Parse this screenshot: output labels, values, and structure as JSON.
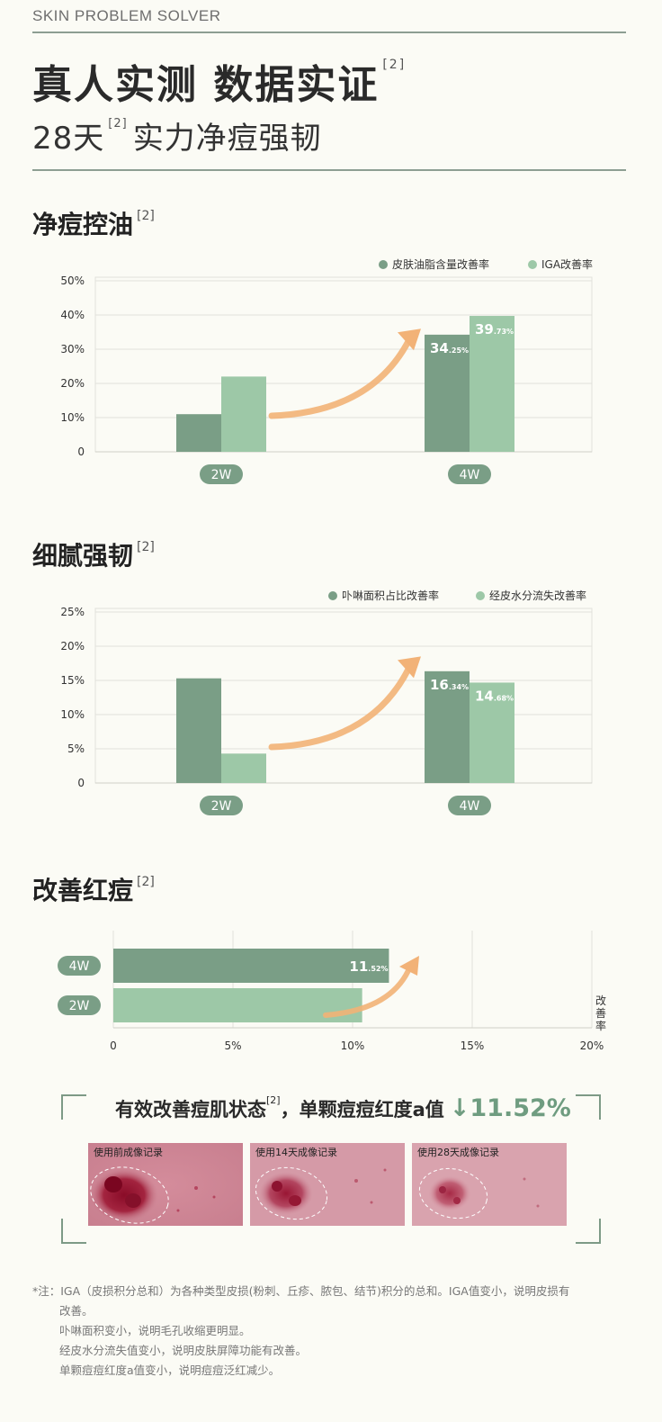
{
  "brand": "SKIN PROBLEM SOLVER",
  "headline": {
    "text": "真人实测 数据实证",
    "ref": "[2]"
  },
  "subline": {
    "prefix": "28天",
    "ref": "[2]",
    "suffix": "实力净痘强韧"
  },
  "colors": {
    "dark_green": "#7a9e86",
    "light_green": "#9dc8a7",
    "arrow": "#f2b277",
    "pill": "#7a9e86"
  },
  "section1": {
    "title": "净痘控油",
    "ref": "[2]"
  },
  "section2": {
    "title": "细腻强韧",
    "ref": "[2]"
  },
  "section3": {
    "title": "改善红痘",
    "ref": "[2]"
  },
  "chart_data": [
    {
      "type": "bar",
      "categories": [
        "2W",
        "4W"
      ],
      "series": [
        {
          "name": "皮肤油脂含量改善率",
          "values": [
            11,
            34.25
          ],
          "labels": [
            "",
            "34.25%"
          ]
        },
        {
          "name": "IGA改善率",
          "values": [
            22,
            39.73
          ],
          "labels": [
            "",
            "39.73%"
          ]
        }
      ],
      "yticks": [
        "0",
        "10%",
        "20%",
        "30%",
        "40%",
        "50%"
      ],
      "ylim": [
        0,
        50
      ],
      "legend": "top-right"
    },
    {
      "type": "bar",
      "categories": [
        "2W",
        "4W"
      ],
      "series": [
        {
          "name": "卟啉面积占比改善率",
          "values": [
            15.3,
            16.34
          ],
          "labels": [
            "",
            "16.34%"
          ]
        },
        {
          "name": "经皮水分流失改善率",
          "values": [
            4.3,
            14.68
          ],
          "labels": [
            "",
            "14.68%"
          ]
        }
      ],
      "yticks": [
        "0",
        "5%",
        "10%",
        "15%",
        "20%",
        "25%"
      ],
      "ylim": [
        0,
        25
      ],
      "legend": "top-right"
    },
    {
      "type": "bar",
      "orientation": "horizontal",
      "categories": [
        "4W",
        "2W"
      ],
      "values": [
        11.52,
        10.4
      ],
      "labels": [
        "11.52%",
        ""
      ],
      "xticks": [
        "0",
        "5%",
        "10%",
        "15%",
        "20%"
      ],
      "xlim": [
        0,
        20
      ],
      "axis_label": "改善率"
    }
  ],
  "summary": {
    "text": "有效改善痘肌状态",
    "ref": "[2]",
    "text2": "，单颗痘痘红度a值",
    "arrow": "↓",
    "value": "11.52%"
  },
  "photos": [
    {
      "label": "使用前成像记录"
    },
    {
      "label": "使用14天成像记录"
    },
    {
      "label": "使用28天成像记录"
    }
  ],
  "notes": [
    "*注：IGA（皮损积分总和）为各种类型皮损(粉刺、丘疹、脓包、结节)积分的总和。IGA值变小，说明皮损有",
    "改善。",
    "卟啉面积变小，说明毛孔收缩更明显。",
    "经皮水分流失值变小，说明皮肤屏障功能有改善。",
    "单颗痘痘红度a值变小，说明痘痘泛红减少。"
  ]
}
